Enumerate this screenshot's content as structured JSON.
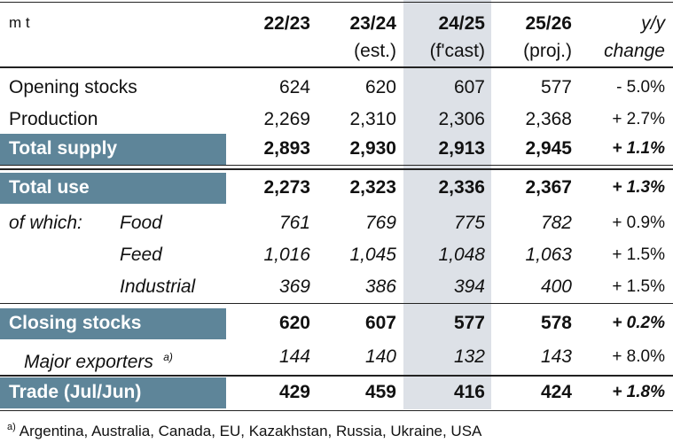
{
  "header": {
    "unit": "m t",
    "columns": [
      {
        "line1": "22/23"
      },
      {
        "line1": "23/24",
        "line2": "(est.)"
      },
      {
        "line1": "24/25",
        "line2": "(f'cast)"
      },
      {
        "line1": "25/26",
        "line2": "(proj.)"
      }
    ],
    "change": {
      "line1": "y/y",
      "line2": "change"
    }
  },
  "rows": [
    {
      "label": "Opening stocks",
      "values": [
        "624",
        "620",
        "607",
        "577"
      ],
      "change": "- 5.0%"
    },
    {
      "label": "Production",
      "values": [
        "2,269",
        "2,310",
        "2,306",
        "2,368"
      ],
      "change": "+ 2.7%"
    },
    {
      "label": "Total supply",
      "values": [
        "2,893",
        "2,930",
        "2,913",
        "2,945"
      ],
      "change": "+ 1.1%"
    },
    {
      "label": "Total use",
      "values": [
        "2,273",
        "2,323",
        "2,336",
        "2,367"
      ],
      "change": "+ 1.3%"
    },
    {
      "prefix": "of which:",
      "label": "Food",
      "values": [
        "761",
        "769",
        "775",
        "782"
      ],
      "change": "+ 0.9%"
    },
    {
      "label": "Feed",
      "values": [
        "1,016",
        "1,045",
        "1,048",
        "1,063"
      ],
      "change": "+ 1.5%"
    },
    {
      "label": "Industrial",
      "values": [
        "369",
        "386",
        "394",
        "400"
      ],
      "change": "+ 1.5%"
    },
    {
      "label": "Closing stocks",
      "values": [
        "620",
        "607",
        "577",
        "578"
      ],
      "change": "+ 0.2%"
    },
    {
      "label": "Major exporters",
      "note": "a)",
      "values": [
        "144",
        "140",
        "132",
        "143"
      ],
      "change": "+ 8.0%"
    },
    {
      "label": "Trade (Jul/Jun)",
      "values": [
        "429",
        "459",
        "416",
        "424"
      ],
      "change": "+ 1.8%"
    }
  ],
  "footnote": {
    "marker": "a)",
    "text": "Argentina, Australia, Canada, EU, Kazakhstan, Russia, Ukraine, USA"
  }
}
